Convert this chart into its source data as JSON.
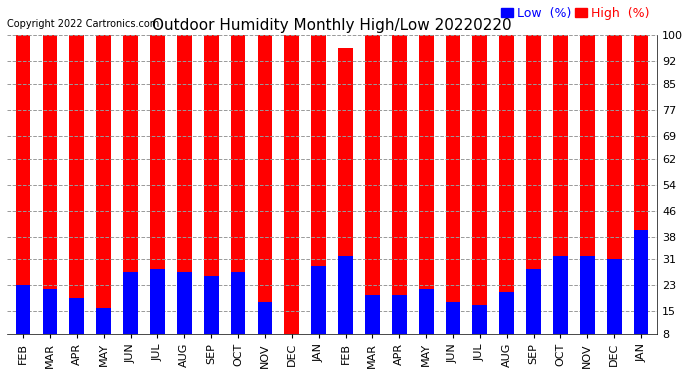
{
  "title": "Outdoor Humidity Monthly High/Low 20220220",
  "copyright": "Copyright 2022 Cartronics.com",
  "legend_low": "Low  (%)",
  "legend_high": "High  (%)",
  "categories": [
    "FEB",
    "MAR",
    "APR",
    "MAY",
    "JUN",
    "JUL",
    "AUG",
    "SEP",
    "OCT",
    "NOV",
    "DEC",
    "JAN",
    "FEB",
    "MAR",
    "APR",
    "MAY",
    "JUN",
    "JUL",
    "AUG",
    "SEP",
    "OCT",
    "NOV",
    "DEC",
    "JAN"
  ],
  "high_values": [
    100,
    100,
    100,
    100,
    100,
    100,
    100,
    100,
    100,
    100,
    100,
    100,
    96,
    100,
    100,
    100,
    100,
    100,
    100,
    100,
    100,
    100,
    100,
    100
  ],
  "low_values": [
    23,
    22,
    19,
    16,
    27,
    28,
    27,
    26,
    27,
    18,
    8,
    29,
    32,
    20,
    20,
    22,
    18,
    17,
    21,
    28,
    32,
    32,
    31,
    40
  ],
  "ymin": 8,
  "ymax": 100,
  "yticks": [
    8,
    15,
    23,
    31,
    38,
    46,
    54,
    62,
    69,
    77,
    85,
    92,
    100
  ],
  "bar_color_high": "#ff0000",
  "bar_color_low": "#0000ff",
  "background_color": "#ffffff",
  "title_fontsize": 11,
  "copyright_fontsize": 7,
  "tick_fontsize": 8,
  "legend_fontsize": 9,
  "bar_width": 0.55,
  "grid_color": "#999999",
  "grid_style": "--"
}
